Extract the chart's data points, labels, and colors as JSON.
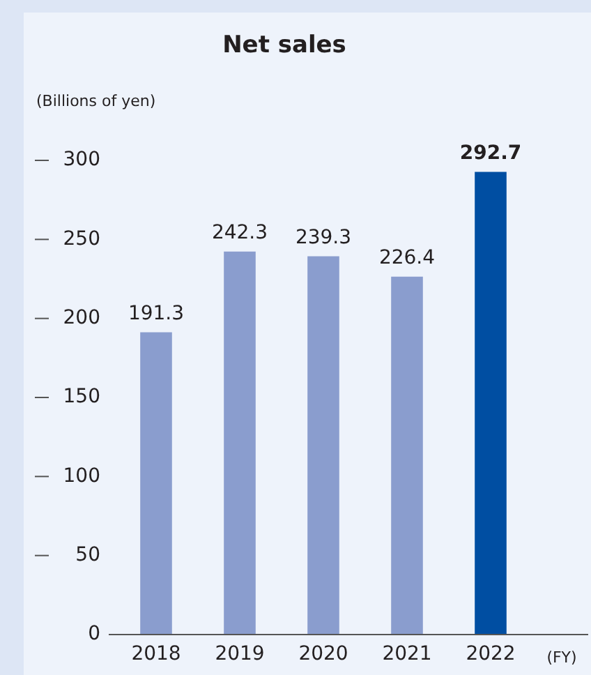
{
  "chart_data": {
    "type": "bar",
    "title": "Net sales",
    "ylabel": "(Billions of yen)",
    "xlabel": "(FY)",
    "categories": [
      "2018",
      "2019",
      "2020",
      "2021",
      "2022"
    ],
    "values": [
      191.3,
      242.3,
      239.3,
      226.4,
      292.7
    ],
    "colors": [
      "#8a9dce",
      "#8a9dce",
      "#8a9dce",
      "#8a9dce",
      "#004ea2"
    ],
    "ylim": [
      0,
      300
    ],
    "yticks": [
      0,
      50,
      100,
      150,
      200,
      250,
      300
    ],
    "data_labels": true,
    "grid": false,
    "legend": false
  }
}
